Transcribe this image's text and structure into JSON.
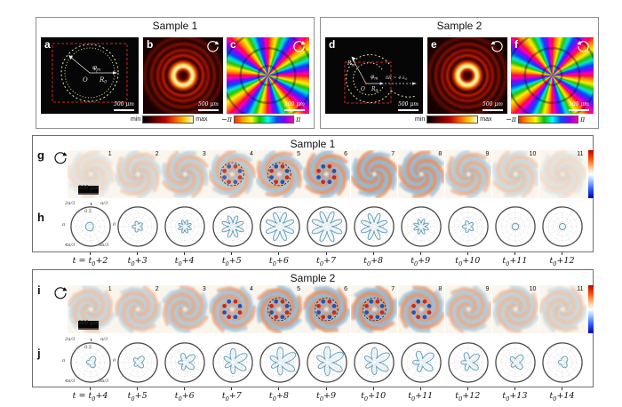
{
  "sample1_top": {
    "title": "Sample 1",
    "panel_a": {
      "letter": "a",
      "phi": "φ",
      "phi_sub": "m",
      "origin": "O",
      "radius": "R",
      "radius_sub": "0",
      "scalebar": "500 μm"
    },
    "panel_b": {
      "letter": "b",
      "scalebar": "500 μm",
      "icon": "rotation-cw-icon"
    },
    "panel_c": {
      "letter": "c",
      "scalebar": "500 μm",
      "icon": "rotation-cw-icon"
    },
    "colorbar_intensity": {
      "min": "min",
      "max": "max"
    },
    "colorbar_phase": {
      "min": "−π",
      "max": "π"
    }
  },
  "sample2_top": {
    "title": "Sample 2",
    "panel_d": {
      "letter": "d",
      "rm": "R",
      "rm_sub": "m",
      "phi": "φ",
      "phi_sub": "m",
      "origin": "O",
      "radius": "R",
      "radius_sub": "0",
      "delta": "δR = 4·λ",
      "delta_sub": "0",
      "scalebar": "500 μm"
    },
    "panel_e": {
      "letter": "e",
      "scalebar": "500 μm",
      "icon": "rotation-ccw-icon"
    },
    "panel_f": {
      "letter": "f",
      "scalebar": "500 μm",
      "icon": "rotation-ccw-icon"
    },
    "colorbar_intensity": {
      "min": "min",
      "max": "max"
    },
    "colorbar_phase": {
      "min": "−π",
      "max": "π"
    }
  },
  "polar_axis": {
    "a120": "2π/3",
    "a60": "π/3",
    "a180": "π",
    "a0": "0",
    "a240": "4π/3",
    "a300": "5π/3",
    "radial": "0.5"
  },
  "wave_colors": {
    "orange": "#dd8050",
    "blue": "#7fb2d6",
    "red_dot": "#c62b1e",
    "blue_dot": "#2a4fb0"
  },
  "series1": {
    "title": "Sample 1",
    "row_letter": "g",
    "polar_letter": "h",
    "scalebar": "500 μm",
    "icon": "rotation-cw-icon",
    "spiral": {
      "arms": 8,
      "turns": 0.55,
      "dir": 1
    },
    "frames": [
      {
        "num": "1",
        "amp": 0.1
      },
      {
        "num": "2",
        "amp": 0.3
      },
      {
        "num": "3",
        "amp": 0.5
      },
      {
        "num": "4",
        "amp": 0.6,
        "dots": true,
        "ring": true
      },
      {
        "num": "5",
        "amp": 0.75,
        "dots": true,
        "ring": true
      },
      {
        "num": "6",
        "amp": 0.9,
        "dots": true
      },
      {
        "num": "7",
        "amp": 1.0
      },
      {
        "num": "8",
        "amp": 0.95
      },
      {
        "num": "9",
        "amp": 0.6
      },
      {
        "num": "10",
        "amp": 0.3
      },
      {
        "num": "11",
        "amp": 0.1
      }
    ],
    "polars": [
      {
        "petals": 1,
        "amp": 0.15
      },
      {
        "petals": 5,
        "amp": 0.18
      },
      {
        "petals": 8,
        "amp": 0.25
      },
      {
        "petals": 8,
        "amp": 0.5
      },
      {
        "petals": 8,
        "amp": 0.68
      },
      {
        "petals": 8,
        "amp": 0.74
      },
      {
        "petals": 8,
        "amp": 0.62
      },
      {
        "petals": 8,
        "amp": 0.3
      },
      {
        "petals": 5,
        "amp": 0.2
      },
      {
        "petals": 0,
        "amp": 0.13
      },
      {
        "petals": 0,
        "amp": 0.11
      }
    ],
    "time_labels": [
      "t = t₀+2",
      "t₀+3",
      "t₀+4",
      "t₀+5",
      "t₀+6",
      "t₀+7",
      "t₀+8",
      "t₀+9",
      "t₀+10",
      "t₀+11",
      "t₀+12"
    ]
  },
  "series2": {
    "title": "Sample 2",
    "row_letter": "i",
    "polar_letter": "j",
    "scalebar": "500 μm",
    "icon": "rotation-cw-icon",
    "irregular": true,
    "spiral": {
      "arms": 6,
      "turns": 0.8,
      "dir": -1
    },
    "frames": [
      {
        "num": "1",
        "amp": 0.35
      },
      {
        "num": "2",
        "amp": 0.45
      },
      {
        "num": "3",
        "amp": 0.6
      },
      {
        "num": "4",
        "amp": 0.75,
        "dots": true
      },
      {
        "num": "5",
        "amp": 0.9,
        "dots": true,
        "ring": true
      },
      {
        "num": "6",
        "amp": 0.92,
        "dots": true,
        "ring": true
      },
      {
        "num": "7",
        "amp": 0.95,
        "dots": true,
        "ring": true
      },
      {
        "num": "8",
        "amp": 0.85,
        "dots": true
      },
      {
        "num": "9",
        "amp": 0.6
      },
      {
        "num": "10",
        "amp": 0.45
      },
      {
        "num": "11",
        "amp": 0.3
      }
    ],
    "polars": [
      {
        "petals": 3,
        "amp": 0.18
      },
      {
        "petals": 4,
        "amp": 0.22
      },
      {
        "petals": 5,
        "amp": 0.38
      },
      {
        "petals": 6,
        "amp": 0.55
      },
      {
        "petals": 6,
        "amp": 0.62
      },
      {
        "petals": 6,
        "amp": 0.65
      },
      {
        "petals": 6,
        "amp": 0.6
      },
      {
        "petals": 5,
        "amp": 0.5
      },
      {
        "petals": 5,
        "amp": 0.42
      },
      {
        "petals": 4,
        "amp": 0.3
      },
      {
        "petals": 3,
        "amp": 0.18
      }
    ],
    "time_labels": [
      "t = t₀+4",
      "t₀+5",
      "t₀+6",
      "t₀+7",
      "t₀+8",
      "t₀+9",
      "t₀+10",
      "t₀+11",
      "t₀+12",
      "t₀+13",
      "t₀+14"
    ]
  }
}
